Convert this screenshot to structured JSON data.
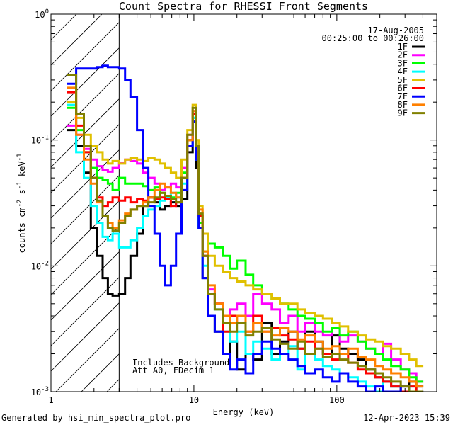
{
  "chart_data": {
    "type": "line",
    "title": "Count Spectra for RHESSI Front Segments",
    "xlabel": "Energy (keV)",
    "ylabel": "counts cm^-2 s^-1 keV^-1",
    "ylabel_parts": {
      "a": "counts cm",
      "exp1": "-2",
      "b": " s",
      "exp2": "-1",
      "c": " keV",
      "exp3": "-1"
    },
    "xscale": "log",
    "yscale": "log",
    "xlim": [
      1,
      500
    ],
    "ylim": [
      0.001,
      1
    ],
    "x_ticks": [
      {
        "value": 1,
        "label": "1"
      },
      {
        "value": 10,
        "label": "10"
      },
      {
        "value": 100,
        "label": "100"
      }
    ],
    "y_ticks": [
      {
        "value": 0.001,
        "base": "10",
        "exp": "-3"
      },
      {
        "value": 0.01,
        "base": "10",
        "exp": "-2"
      },
      {
        "value": 0.1,
        "base": "10",
        "exp": "-1"
      },
      {
        "value": 1,
        "base": "10",
        "exp": "0"
      }
    ],
    "shaded_region": {
      "x_from": 1,
      "x_to": 3,
      "pattern": "hatched"
    },
    "annotations": {
      "date": "17-Aug-2005",
      "time_range": "00:25:00 to 00:26:00",
      "note_line1": "Includes Background",
      "note_line2": "Att A0, FDecim 1"
    },
    "footer_left": "Generated by hsi_min_spectra_plot.pro",
    "footer_right": "12-Apr-2023 15:39",
    "legend_position": "top-right",
    "series": [
      {
        "name": "1F",
        "color": "#000000",
        "x": [
          1.3,
          1.5,
          1.7,
          1.9,
          2.1,
          2.3,
          2.5,
          2.7,
          3.0,
          3.3,
          3.6,
          4.0,
          4.4,
          4.8,
          5.3,
          5.8,
          6.3,
          6.9,
          7.5,
          8.2,
          9.0,
          9.8,
          10.3,
          10.8,
          11.5,
          12.5,
          14,
          16,
          18,
          20,
          23,
          26,
          30,
          35,
          40,
          46,
          53,
          60,
          70,
          80,
          92,
          105,
          120,
          140,
          160,
          185,
          210,
          240,
          280,
          320,
          360
        ],
        "values": [
          0.12,
          0.09,
          0.055,
          0.02,
          0.012,
          0.008,
          0.006,
          0.0058,
          0.006,
          0.008,
          0.012,
          0.018,
          0.03,
          0.035,
          0.032,
          0.028,
          0.03,
          0.032,
          0.03,
          0.034,
          0.08,
          0.14,
          0.06,
          0.02,
          0.008,
          0.004,
          0.003,
          0.002,
          0.0025,
          0.0015,
          0.002,
          0.0018,
          0.0035,
          0.002,
          0.0025,
          0.003,
          0.0022,
          0.003,
          0.0025,
          0.002,
          0.0028,
          0.0022,
          0.002,
          0.0018,
          0.0015,
          0.0013,
          0.0012,
          0.0011,
          0.001,
          0.0012,
          0.0011
        ]
      },
      {
        "name": "2F",
        "color": "#ff00ff",
        "x": [
          1.3,
          1.5,
          1.7,
          1.9,
          2.1,
          2.3,
          2.5,
          2.7,
          3.0,
          3.3,
          3.6,
          4.0,
          4.4,
          4.8,
          5.3,
          5.8,
          6.3,
          6.9,
          7.5,
          8.2,
          9.0,
          9.8,
          10.3,
          10.8,
          11.5,
          12.5,
          14,
          16,
          18,
          20,
          23,
          26,
          30,
          35,
          40,
          46,
          53,
          60,
          70,
          80,
          92,
          105,
          120,
          140,
          160,
          185,
          210,
          240,
          280,
          320,
          360
        ],
        "values": [
          0.13,
          0.11,
          0.085,
          0.07,
          0.062,
          0.058,
          0.056,
          0.06,
          0.066,
          0.07,
          0.068,
          0.065,
          0.055,
          0.05,
          0.045,
          0.04,
          0.042,
          0.045,
          0.042,
          0.06,
          0.11,
          0.17,
          0.09,
          0.025,
          0.012,
          0.0065,
          0.005,
          0.004,
          0.0045,
          0.005,
          0.004,
          0.006,
          0.005,
          0.0045,
          0.0035,
          0.004,
          0.003,
          0.0035,
          0.003,
          0.0028,
          0.0032,
          0.0025,
          0.0028,
          0.0025,
          0.0022,
          0.002,
          0.0024,
          0.0018,
          0.0015,
          0.0014,
          0.0012
        ]
      },
      {
        "name": "3F",
        "color": "#00ff00",
        "x": [
          1.3,
          1.5,
          1.7,
          1.9,
          2.1,
          2.3,
          2.5,
          2.7,
          3.0,
          3.3,
          3.6,
          4.0,
          4.4,
          4.8,
          5.3,
          5.8,
          6.3,
          6.9,
          7.5,
          8.2,
          9.0,
          9.8,
          10.3,
          10.8,
          11.5,
          12.5,
          14,
          16,
          18,
          20,
          23,
          26,
          30,
          35,
          40,
          46,
          53,
          60,
          70,
          80,
          92,
          105,
          120,
          140,
          160,
          185,
          210,
          240,
          280,
          320,
          360
        ],
        "values": [
          0.18,
          0.12,
          0.08,
          0.06,
          0.05,
          0.048,
          0.045,
          0.04,
          0.05,
          0.045,
          0.045,
          0.045,
          0.043,
          0.04,
          0.042,
          0.038,
          0.036,
          0.035,
          0.038,
          0.055,
          0.1,
          0.15,
          0.08,
          0.022,
          0.013,
          0.015,
          0.014,
          0.012,
          0.0095,
          0.011,
          0.0085,
          0.007,
          0.006,
          0.0055,
          0.005,
          0.0045,
          0.004,
          0.0038,
          0.0035,
          0.003,
          0.0032,
          0.0028,
          0.003,
          0.0025,
          0.0022,
          0.002,
          0.0018,
          0.0016,
          0.0015,
          0.0013,
          0.0012
        ]
      },
      {
        "name": "4F",
        "color": "#00ffff",
        "x": [
          1.3,
          1.5,
          1.7,
          1.9,
          2.1,
          2.3,
          2.5,
          2.7,
          3.0,
          3.3,
          3.6,
          4.0,
          4.4,
          4.8,
          5.3,
          5.8,
          6.3,
          6.9,
          7.5,
          8.2,
          9.0,
          9.8,
          10.3,
          10.8,
          11.5,
          12.5,
          14,
          16,
          18,
          20,
          23,
          26,
          30,
          35,
          40,
          46,
          53,
          60,
          70,
          80,
          92,
          105,
          120,
          140,
          160,
          185,
          210,
          240,
          280,
          320,
          360
        ],
        "values": [
          0.19,
          0.08,
          0.05,
          0.03,
          0.022,
          0.017,
          0.016,
          0.018,
          0.014,
          0.014,
          0.016,
          0.02,
          0.025,
          0.028,
          0.03,
          0.033,
          0.035,
          0.038,
          0.035,
          0.045,
          0.09,
          0.15,
          0.07,
          0.02,
          0.01,
          0.006,
          0.0045,
          0.003,
          0.0025,
          0.003,
          0.002,
          0.0025,
          0.0022,
          0.0018,
          0.002,
          0.0023,
          0.0015,
          0.002,
          0.0018,
          0.0016,
          0.0015,
          0.0014,
          0.0013,
          0.0012,
          0.0011,
          0.001,
          0.0012,
          0.0011,
          0.001,
          0.0011,
          0.001
        ]
      },
      {
        "name": "5F",
        "color": "#e0c000",
        "x": [
          1.3,
          1.5,
          1.7,
          1.9,
          2.1,
          2.3,
          2.5,
          2.7,
          3.0,
          3.3,
          3.6,
          4.0,
          4.4,
          4.8,
          5.3,
          5.8,
          6.3,
          6.9,
          7.5,
          8.2,
          9.0,
          9.8,
          10.3,
          10.8,
          11.5,
          12.5,
          14,
          16,
          18,
          20,
          23,
          26,
          30,
          35,
          40,
          46,
          53,
          60,
          70,
          80,
          92,
          105,
          120,
          140,
          160,
          185,
          210,
          240,
          280,
          320,
          360
        ],
        "values": [
          0.2,
          0.15,
          0.11,
          0.09,
          0.08,
          0.07,
          0.065,
          0.068,
          0.065,
          0.07,
          0.072,
          0.07,
          0.068,
          0.072,
          0.07,
          0.065,
          0.06,
          0.055,
          0.05,
          0.07,
          0.12,
          0.19,
          0.1,
          0.03,
          0.018,
          0.012,
          0.01,
          0.009,
          0.008,
          0.0075,
          0.007,
          0.0065,
          0.006,
          0.0055,
          0.005,
          0.005,
          0.0045,
          0.0042,
          0.004,
          0.0038,
          0.0035,
          0.0033,
          0.003,
          0.0028,
          0.0026,
          0.0025,
          0.0023,
          0.0022,
          0.002,
          0.0018,
          0.0016
        ]
      },
      {
        "name": "6F",
        "color": "#ff0000",
        "x": [
          1.3,
          1.5,
          1.7,
          1.9,
          2.1,
          2.3,
          2.5,
          2.7,
          3.0,
          3.3,
          3.6,
          4.0,
          4.4,
          4.8,
          5.3,
          5.8,
          6.3,
          6.9,
          7.5,
          8.2,
          9.0,
          9.8,
          10.3,
          10.8,
          11.5,
          12.5,
          14,
          16,
          18,
          20,
          23,
          26,
          30,
          35,
          40,
          46,
          53,
          60,
          70,
          80,
          92,
          105,
          120,
          140,
          160,
          185,
          210,
          240,
          280,
          320,
          360
        ],
        "values": [
          0.24,
          0.13,
          0.08,
          0.05,
          0.035,
          0.03,
          0.032,
          0.035,
          0.033,
          0.035,
          0.032,
          0.034,
          0.033,
          0.035,
          0.034,
          0.035,
          0.034,
          0.03,
          0.032,
          0.05,
          0.1,
          0.16,
          0.08,
          0.025,
          0.012,
          0.006,
          0.005,
          0.003,
          0.004,
          0.0035,
          0.003,
          0.004,
          0.003,
          0.0032,
          0.0028,
          0.0026,
          0.0022,
          0.0025,
          0.0022,
          0.002,
          0.0018,
          0.002,
          0.0017,
          0.0015,
          0.0014,
          0.0013,
          0.0012,
          0.0011,
          0.001,
          0.0011,
          0.001
        ]
      },
      {
        "name": "7F",
        "color": "#0000ff",
        "x": [
          1.3,
          1.5,
          1.7,
          1.9,
          2.1,
          2.3,
          2.5,
          2.7,
          3.0,
          3.3,
          3.6,
          4.0,
          4.4,
          4.8,
          5.3,
          5.8,
          6.3,
          6.9,
          7.5,
          8.2,
          9.0,
          9.8,
          10.3,
          10.8,
          11.5,
          12.5,
          14,
          16,
          18,
          20,
          23,
          26,
          30,
          35,
          40,
          46,
          53,
          60,
          70,
          80,
          92,
          105,
          120,
          140,
          160,
          185,
          210,
          240,
          280,
          320,
          360
        ],
        "values": [
          0.28,
          0.37,
          0.37,
          0.37,
          0.38,
          0.39,
          0.38,
          0.38,
          0.37,
          0.3,
          0.22,
          0.12,
          0.06,
          0.03,
          0.018,
          0.01,
          0.007,
          0.01,
          0.018,
          0.04,
          0.09,
          0.14,
          0.07,
          0.02,
          0.008,
          0.004,
          0.003,
          0.002,
          0.0015,
          0.0018,
          0.0014,
          0.002,
          0.0025,
          0.0022,
          0.002,
          0.0018,
          0.0016,
          0.0014,
          0.0015,
          0.0013,
          0.0012,
          0.0014,
          0.0012,
          0.0011,
          0.001,
          0.0011,
          0.001,
          0.001,
          0.0011,
          0.001,
          0.001
        ]
      },
      {
        "name": "8F",
        "color": "#ff8000",
        "x": [
          1.3,
          1.5,
          1.7,
          1.9,
          2.1,
          2.3,
          2.5,
          2.7,
          3.0,
          3.3,
          3.6,
          4.0,
          4.4,
          4.8,
          5.3,
          5.8,
          6.3,
          6.9,
          7.5,
          8.2,
          9.0,
          9.8,
          10.3,
          10.8,
          11.5,
          12.5,
          14,
          16,
          18,
          20,
          23,
          26,
          30,
          35,
          40,
          46,
          53,
          60,
          70,
          80,
          92,
          105,
          120,
          140,
          160,
          185,
          210,
          240,
          280,
          320,
          360
        ],
        "values": [
          0.26,
          0.11,
          0.07,
          0.045,
          0.032,
          0.025,
          0.022,
          0.02,
          0.023,
          0.026,
          0.028,
          0.03,
          0.032,
          0.035,
          0.04,
          0.045,
          0.042,
          0.038,
          0.035,
          0.05,
          0.1,
          0.17,
          0.09,
          0.028,
          0.013,
          0.007,
          0.005,
          0.004,
          0.0035,
          0.004,
          0.003,
          0.0035,
          0.003,
          0.0028,
          0.0032,
          0.003,
          0.0026,
          0.0028,
          0.0025,
          0.0022,
          0.0023,
          0.002,
          0.0022,
          0.0019,
          0.0018,
          0.0016,
          0.0015,
          0.0014,
          0.0013,
          0.0012,
          0.0011
        ]
      },
      {
        "name": "9F",
        "color": "#808000",
        "x": [
          1.3,
          1.5,
          1.7,
          1.9,
          2.1,
          2.3,
          2.5,
          2.7,
          3.0,
          3.3,
          3.6,
          4.0,
          4.4,
          4.8,
          5.3,
          5.8,
          6.3,
          6.9,
          7.5,
          8.2,
          9.0,
          9.8,
          10.3,
          10.8,
          11.5,
          12.5,
          14,
          16,
          18,
          20,
          23,
          26,
          30,
          35,
          40,
          46,
          53,
          60,
          70,
          80,
          92,
          105,
          120,
          140,
          160,
          185,
          210,
          240,
          280,
          320,
          360
        ],
        "values": [
          0.33,
          0.16,
          0.09,
          0.05,
          0.033,
          0.025,
          0.02,
          0.019,
          0.022,
          0.025,
          0.028,
          0.03,
          0.03,
          0.032,
          0.035,
          0.038,
          0.036,
          0.034,
          0.032,
          0.05,
          0.11,
          0.18,
          0.09,
          0.026,
          0.012,
          0.006,
          0.0045,
          0.0035,
          0.003,
          0.0035,
          0.0028,
          0.003,
          0.0032,
          0.0026,
          0.0024,
          0.0022,
          0.0025,
          0.002,
          0.0022,
          0.0019,
          0.002,
          0.0018,
          0.0017,
          0.0016,
          0.0015,
          0.0014,
          0.0013,
          0.0012,
          0.0011,
          0.001,
          0.001
        ]
      }
    ]
  }
}
